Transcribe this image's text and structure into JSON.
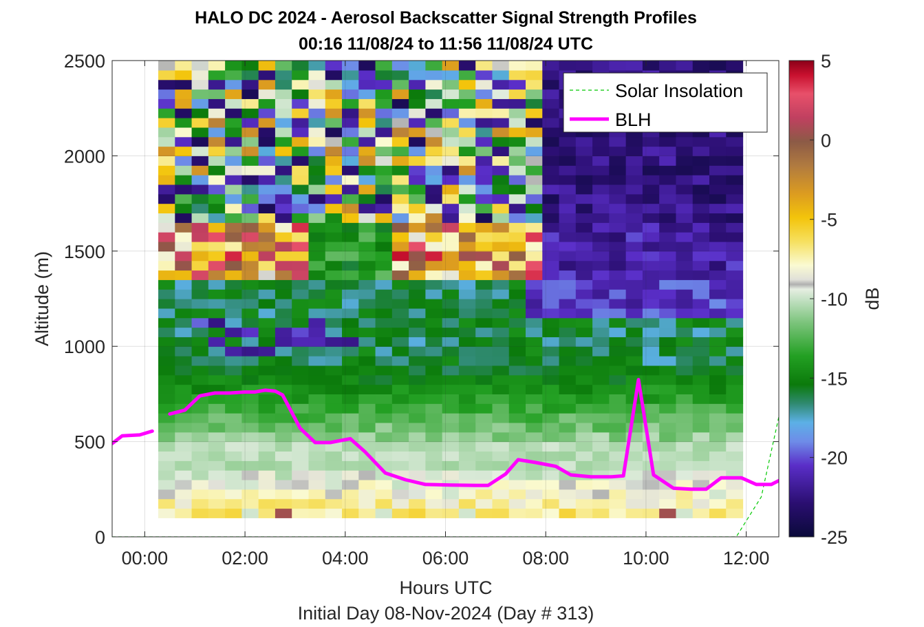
{
  "chart_data": {
    "type": "heatmap",
    "title_line1": "HALO DC 2024 - Aerosol Backscatter Signal Strength Profiles",
    "title_line2": "00:16 11/08/24 to 11:56 11/08/24  UTC",
    "xlabel": "Hours UTC",
    "ylabel": "Altitude (m)",
    "footer": "Initial Day 08-Nov-2024 (Day # 313)",
    "xlim": [
      -0.65,
      12.65
    ],
    "ylim": [
      0,
      2500
    ],
    "x_ticks": [
      0,
      2,
      4,
      6,
      8,
      10,
      12
    ],
    "x_tick_labels": [
      "00:00",
      "02:00",
      "04:00",
      "06:00",
      "08:00",
      "10:00",
      "12:00"
    ],
    "y_ticks": [
      0,
      500,
      1000,
      1500,
      2000,
      2500
    ],
    "y_tick_labels": [
      "0",
      "500",
      "1000",
      "1500",
      "2000",
      "2500"
    ],
    "heatmap_extent": {
      "x_start": 0.27,
      "x_end": 11.93,
      "y_start": 100,
      "y_end": 2500,
      "cols": 35,
      "rows": 48
    },
    "colorbar": {
      "label": "dB",
      "range": [
        -25,
        5
      ],
      "ticks": [
        5,
        0,
        -5,
        -10,
        -15,
        -20,
        -25
      ],
      "tick_labels": [
        "5",
        "0",
        "-5",
        "-10",
        "-15",
        "-20",
        "-25"
      ],
      "stops": [
        [
          0.0,
          "#0a0a3a"
        ],
        [
          0.07,
          "#2a0e70"
        ],
        [
          0.15,
          "#5a2ec8"
        ],
        [
          0.2,
          "#6e8ce8"
        ],
        [
          0.24,
          "#5cb0e6"
        ],
        [
          0.28,
          "#2f8a70"
        ],
        [
          0.32,
          "#0b7a0b"
        ],
        [
          0.38,
          "#23a023"
        ],
        [
          0.45,
          "#7cc47c"
        ],
        [
          0.5,
          "#c6e2c6"
        ],
        [
          0.52,
          "#e6eee2"
        ],
        [
          0.53,
          "#b0b0b0"
        ],
        [
          0.54,
          "#e0e0d8"
        ],
        [
          0.57,
          "#fafad2"
        ],
        [
          0.62,
          "#f6e060"
        ],
        [
          0.67,
          "#f3c40b"
        ],
        [
          0.72,
          "#dc9c20"
        ],
        [
          0.78,
          "#b07a40"
        ],
        [
          0.83,
          "#8c5a46"
        ],
        [
          0.88,
          "#c04060"
        ],
        [
          0.93,
          "#e8506a"
        ],
        [
          0.97,
          "#c8102e"
        ],
        [
          1.0,
          "#8b0018"
        ]
      ]
    },
    "legend": {
      "placement": "top-right",
      "entries": [
        "Solar Insolation",
        "BLH"
      ]
    },
    "series": [
      {
        "name": "BLH",
        "color": "#ff00ff",
        "segments": [
          [
            [
              -0.65,
              490
            ],
            [
              -0.45,
              530
            ],
            [
              -0.1,
              535
            ],
            [
              0.15,
              555
            ]
          ],
          [
            [
              0.5,
              645
            ],
            [
              0.8,
              665
            ],
            [
              1.1,
              740
            ],
            [
              1.4,
              755
            ],
            [
              1.7,
              755
            ],
            [
              2.0,
              760
            ],
            [
              2.2,
              760
            ],
            [
              2.4,
              770
            ],
            [
              2.6,
              765
            ],
            [
              2.75,
              745
            ],
            [
              3.1,
              570
            ],
            [
              3.4,
              495
            ],
            [
              3.7,
              495
            ],
            [
              4.1,
              515
            ],
            [
              4.4,
              445
            ],
            [
              4.8,
              335
            ],
            [
              5.2,
              300
            ],
            [
              5.6,
              275
            ],
            [
              6.1,
              272
            ],
            [
              6.6,
              270
            ],
            [
              6.85,
              270
            ],
            [
              7.2,
              330
            ],
            [
              7.45,
              405
            ],
            [
              7.8,
              390
            ],
            [
              8.2,
              370
            ],
            [
              8.5,
              325
            ],
            [
              8.9,
              315
            ],
            [
              9.3,
              315
            ],
            [
              9.55,
              320
            ],
            [
              9.85,
              825
            ],
            [
              10.15,
              325
            ],
            [
              10.55,
              255
            ],
            [
              10.9,
              250
            ],
            [
              11.2,
              250
            ],
            [
              11.5,
              310
            ],
            [
              11.9,
              310
            ],
            [
              12.2,
              275
            ],
            [
              12.5,
              275
            ],
            [
              12.65,
              295
            ]
          ]
        ]
      },
      {
        "name": "Solar Insolation",
        "color": "#00c800",
        "points": [
          [
            -0.65,
            0
          ],
          [
            11.8,
            0
          ],
          [
            12.3,
            210
          ],
          [
            12.65,
            630
          ]
        ]
      }
    ]
  }
}
